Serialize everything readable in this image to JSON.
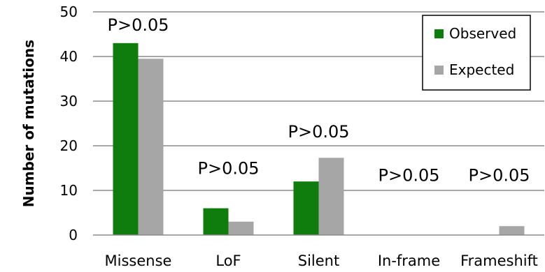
{
  "chart_data": {
    "type": "bar",
    "categories": [
      "Missense",
      "LoF",
      "Silent",
      "In-frame",
      "Frameshift"
    ],
    "series": [
      {
        "name": "Observed",
        "color": "#0e7d0e",
        "values": [
          43,
          6,
          12,
          0,
          0
        ]
      },
      {
        "name": "Expected",
        "color": "#a6a6a6",
        "values": [
          39.5,
          3,
          17.3,
          0,
          2
        ]
      }
    ],
    "annotations": [
      "P>0.05",
      "P>0.05",
      "P>0.05",
      "P>0.05",
      "P>0.05"
    ],
    "ylabel": "Number of mutations",
    "xlabel": "",
    "title": "",
    "ylim": [
      0,
      50
    ],
    "yticks": [
      0,
      10,
      20,
      30,
      40,
      50
    ],
    "grid": true,
    "legend_position": "top-right"
  }
}
